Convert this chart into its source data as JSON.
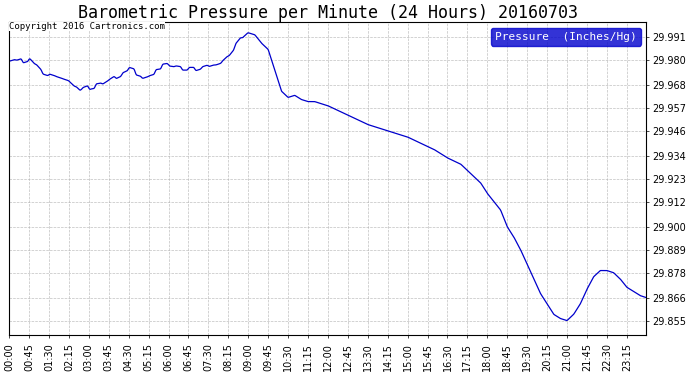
{
  "title": "Barometric Pressure per Minute (24 Hours) 20160703",
  "copyright_text": "Copyright 2016 Cartronics.com",
  "legend_label": "Pressure  (Inches/Hg)",
  "line_color": "#0000cc",
  "background_color": "#ffffff",
  "grid_color": "#b0b0b0",
  "yticks": [
    29.855,
    29.866,
    29.878,
    29.889,
    29.9,
    29.912,
    29.923,
    29.934,
    29.946,
    29.957,
    29.968,
    29.98,
    29.991
  ],
  "ylim": [
    29.848,
    29.998
  ],
  "xtick_labels": [
    "00:00",
    "00:45",
    "01:30",
    "02:15",
    "03:00",
    "03:45",
    "04:30",
    "05:15",
    "06:00",
    "06:45",
    "07:30",
    "08:15",
    "09:00",
    "09:45",
    "10:30",
    "11:15",
    "12:00",
    "12:45",
    "13:30",
    "14:15",
    "15:00",
    "15:45",
    "16:30",
    "17:15",
    "18:00",
    "18:45",
    "19:30",
    "20:15",
    "21:00",
    "21:45",
    "22:30",
    "23:15"
  ],
  "title_fontsize": 12,
  "tick_fontsize": 7,
  "legend_fontsize": 8,
  "figwidth": 6.9,
  "figheight": 3.75,
  "dpi": 100
}
